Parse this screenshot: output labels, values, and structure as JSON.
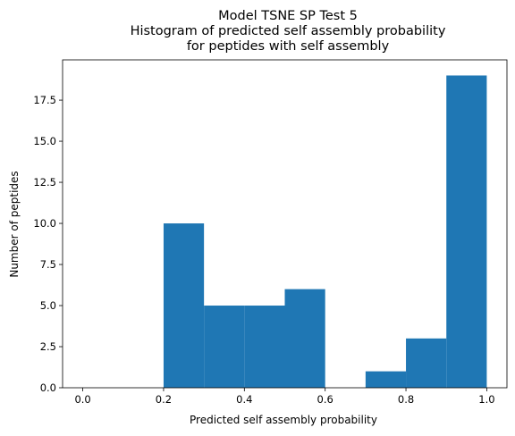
{
  "chart_data": {
    "type": "bar",
    "title_lines": [
      "Model TSNE SP Test 5",
      "Histogram of predicted self assembly probability",
      "for peptides with self assembly"
    ],
    "xlabel": "Predicted self assembly probability",
    "ylabel": "Number of peptides",
    "xlim": [
      -0.05,
      1.05
    ],
    "ylim": [
      0,
      19.95
    ],
    "xticks": [
      "0.0",
      "0.2",
      "0.4",
      "0.6",
      "0.8",
      "1.0"
    ],
    "yticks": [
      "0.0",
      "2.5",
      "5.0",
      "7.5",
      "10.0",
      "12.5",
      "15.0",
      "17.5"
    ],
    "bin_edges": [
      0.0,
      0.1,
      0.2,
      0.3,
      0.4,
      0.5,
      0.6,
      0.7,
      0.8,
      0.9,
      1.0
    ],
    "values": [
      0,
      0,
      10,
      5,
      5,
      6,
      0,
      1,
      3,
      19
    ],
    "color": "#1f77b4",
    "grid": false,
    "legend": false
  }
}
